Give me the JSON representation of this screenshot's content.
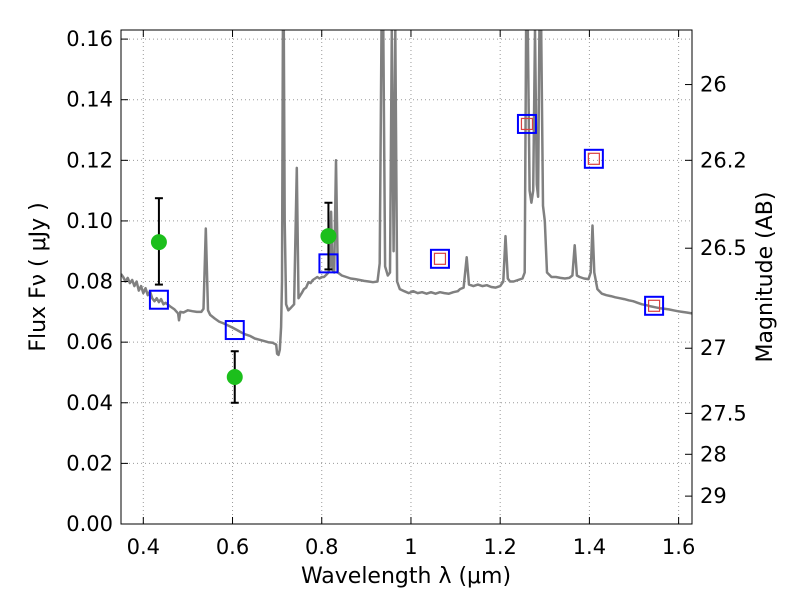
{
  "chart_data": {
    "type": "line",
    "xlabel": "Wavelength  λ (μm)",
    "ylabel": "Flux  Fν  ( μJy )",
    "y2label": "Magnitude (AB)",
    "xlim": [
      0.35,
      1.63
    ],
    "ylim": [
      0.0,
      0.163
    ],
    "grid": true,
    "x_ticks": [
      0.4,
      0.6,
      0.8,
      1.0,
      1.2,
      1.4,
      1.6
    ],
    "x_tick_labels": [
      "0.4",
      "0.6",
      "0.8",
      "1",
      "1.2",
      "1.4",
      "1.6"
    ],
    "y_ticks": [
      0.0,
      0.02,
      0.04,
      0.06,
      0.08,
      0.1,
      0.12,
      0.14,
      0.16
    ],
    "y_tick_labels": [
      "0.00",
      "0.02",
      "0.04",
      "0.06",
      "0.08",
      "0.10",
      "0.12",
      "0.14",
      "0.16"
    ],
    "y2_ticks": [
      {
        "label": "26",
        "flux": 0.145
      },
      {
        "label": "26.2",
        "flux": 0.12
      },
      {
        "label": "26.5",
        "flux": 0.091
      },
      {
        "label": "27",
        "flux": 0.058
      },
      {
        "label": "27.5",
        "flux": 0.0365
      },
      {
        "label": "28",
        "flux": 0.023
      },
      {
        "label": "29",
        "flux": 0.0092
      }
    ],
    "colors": {
      "spectrum": "#808080",
      "observed": "#1cbf1c",
      "errorbar": "#000000",
      "model_square": "#0000ff",
      "inner_square": "#d94040",
      "grid": "#9a9a9a"
    },
    "series": [
      {
        "kind": "spectrum",
        "points": [
          [
            0.35,
            0.0825
          ],
          [
            0.355,
            0.0815
          ],
          [
            0.36,
            0.08
          ],
          [
            0.365,
            0.0812
          ],
          [
            0.37,
            0.0795
          ],
          [
            0.375,
            0.0805
          ],
          [
            0.38,
            0.0785
          ],
          [
            0.385,
            0.08
          ],
          [
            0.39,
            0.077
          ],
          [
            0.395,
            0.0785
          ],
          [
            0.4,
            0.0762
          ],
          [
            0.405,
            0.0778
          ],
          [
            0.41,
            0.0755
          ],
          [
            0.415,
            0.0768
          ],
          [
            0.42,
            0.0745
          ],
          [
            0.425,
            0.0735
          ],
          [
            0.43,
            0.0745
          ],
          [
            0.435,
            0.0732
          ],
          [
            0.44,
            0.0742
          ],
          [
            0.445,
            0.0725
          ],
          [
            0.45,
            0.073
          ],
          [
            0.46,
            0.0718
          ],
          [
            0.47,
            0.0708
          ],
          [
            0.478,
            0.0695
          ],
          [
            0.48,
            0.0672
          ],
          [
            0.483,
            0.07
          ],
          [
            0.49,
            0.0698
          ],
          [
            0.5,
            0.0705
          ],
          [
            0.51,
            0.0702
          ],
          [
            0.52,
            0.07
          ],
          [
            0.53,
            0.07
          ],
          [
            0.535,
            0.071
          ],
          [
            0.54,
            0.0975
          ],
          [
            0.545,
            0.0705
          ],
          [
            0.55,
            0.069
          ],
          [
            0.56,
            0.0678
          ],
          [
            0.57,
            0.0668
          ],
          [
            0.58,
            0.0662
          ],
          [
            0.59,
            0.0655
          ],
          [
            0.6,
            0.0648
          ],
          [
            0.61,
            0.064
          ],
          [
            0.62,
            0.0632
          ],
          [
            0.63,
            0.0625
          ],
          [
            0.64,
            0.062
          ],
          [
            0.65,
            0.0612
          ],
          [
            0.66,
            0.0608
          ],
          [
            0.67,
            0.0604
          ],
          [
            0.68,
            0.06
          ],
          [
            0.69,
            0.0598
          ],
          [
            0.698,
            0.0592
          ],
          [
            0.7,
            0.0562
          ],
          [
            0.703,
            0.0558
          ],
          [
            0.706,
            0.0575
          ],
          [
            0.709,
            0.065
          ],
          [
            0.711,
            0.08
          ],
          [
            0.713,
            0.163
          ],
          [
            0.715,
            0.163
          ],
          [
            0.717,
            0.1
          ],
          [
            0.72,
            0.0725
          ],
          [
            0.725,
            0.0705
          ],
          [
            0.73,
            0.0712
          ],
          [
            0.738,
            0.0725
          ],
          [
            0.744,
            0.1175
          ],
          [
            0.748,
            0.0745
          ],
          [
            0.755,
            0.0762
          ],
          [
            0.76,
            0.0775
          ],
          [
            0.765,
            0.078
          ],
          [
            0.77,
            0.0798
          ],
          [
            0.775,
            0.0795
          ],
          [
            0.78,
            0.0805
          ],
          [
            0.785,
            0.081
          ],
          [
            0.79,
            0.0815
          ],
          [
            0.795,
            0.081
          ],
          [
            0.8,
            0.0815
          ],
          [
            0.805,
            0.0815
          ],
          [
            0.81,
            0.0822
          ],
          [
            0.815,
            0.083
          ],
          [
            0.818,
            0.085
          ],
          [
            0.821,
            0.103
          ],
          [
            0.824,
            0.084
          ],
          [
            0.828,
            0.083
          ],
          [
            0.832,
            0.12
          ],
          [
            0.836,
            0.083
          ],
          [
            0.845,
            0.082
          ],
          [
            0.855,
            0.0815
          ],
          [
            0.865,
            0.081
          ],
          [
            0.875,
            0.0808
          ],
          [
            0.885,
            0.0805
          ],
          [
            0.895,
            0.0802
          ],
          [
            0.905,
            0.08
          ],
          [
            0.915,
            0.0798
          ],
          [
            0.925,
            0.08
          ],
          [
            0.93,
            0.086
          ],
          [
            0.934,
            0.163
          ],
          [
            0.938,
            0.163
          ],
          [
            0.942,
            0.085
          ],
          [
            0.948,
            0.082
          ],
          [
            0.953,
            0.083
          ],
          [
            0.957,
            0.163
          ],
          [
            0.961,
            0.09
          ],
          [
            0.965,
            0.163
          ],
          [
            0.969,
            0.08
          ],
          [
            0.975,
            0.0775
          ],
          [
            0.985,
            0.0768
          ],
          [
            0.995,
            0.0762
          ],
          [
            1.005,
            0.0768
          ],
          [
            1.015,
            0.0762
          ],
          [
            1.025,
            0.0765
          ],
          [
            1.035,
            0.076
          ],
          [
            1.045,
            0.0765
          ],
          [
            1.055,
            0.076
          ],
          [
            1.065,
            0.0765
          ],
          [
            1.075,
            0.0762
          ],
          [
            1.085,
            0.076
          ],
          [
            1.095,
            0.0765
          ],
          [
            1.105,
            0.0768
          ],
          [
            1.11,
            0.0775
          ],
          [
            1.118,
            0.078
          ],
          [
            1.125,
            0.088
          ],
          [
            1.13,
            0.079
          ],
          [
            1.14,
            0.0785
          ],
          [
            1.15,
            0.079
          ],
          [
            1.16,
            0.0785
          ],
          [
            1.17,
            0.0788
          ],
          [
            1.18,
            0.0782
          ],
          [
            1.19,
            0.078
          ],
          [
            1.2,
            0.0785
          ],
          [
            1.207,
            0.08
          ],
          [
            1.212,
            0.095
          ],
          [
            1.217,
            0.081
          ],
          [
            1.222,
            0.08
          ],
          [
            1.23,
            0.08
          ],
          [
            1.24,
            0.0805
          ],
          [
            1.25,
            0.081
          ],
          [
            1.255,
            0.083
          ],
          [
            1.258,
            0.163
          ],
          [
            1.262,
            0.163
          ],
          [
            1.266,
            0.11
          ],
          [
            1.27,
            0.106
          ],
          [
            1.274,
            0.11
          ],
          [
            1.278,
            0.163
          ],
          [
            1.282,
            0.112
          ],
          [
            1.285,
            0.108
          ],
          [
            1.288,
            0.163
          ],
          [
            1.292,
            0.163
          ],
          [
            1.296,
            0.105
          ],
          [
            1.3,
            0.1
          ],
          [
            1.305,
            0.083
          ],
          [
            1.315,
            0.0815
          ],
          [
            1.325,
            0.0815
          ],
          [
            1.335,
            0.0812
          ],
          [
            1.345,
            0.081
          ],
          [
            1.355,
            0.0812
          ],
          [
            1.362,
            0.082
          ],
          [
            1.367,
            0.092
          ],
          [
            1.372,
            0.082
          ],
          [
            1.378,
            0.0815
          ],
          [
            1.388,
            0.081
          ],
          [
            1.398,
            0.0808
          ],
          [
            1.403,
            0.083
          ],
          [
            1.407,
            0.0985
          ],
          [
            1.411,
            0.083
          ],
          [
            1.418,
            0.0775
          ],
          [
            1.428,
            0.076
          ],
          [
            1.438,
            0.0755
          ],
          [
            1.448,
            0.0752
          ],
          [
            1.458,
            0.0748
          ],
          [
            1.468,
            0.0745
          ],
          [
            1.478,
            0.0742
          ],
          [
            1.488,
            0.0738
          ],
          [
            1.498,
            0.0735
          ],
          [
            1.508,
            0.073
          ],
          [
            1.518,
            0.0725
          ],
          [
            1.528,
            0.0722
          ],
          [
            1.538,
            0.0718
          ],
          [
            1.548,
            0.0715
          ],
          [
            1.558,
            0.0712
          ],
          [
            1.568,
            0.071
          ],
          [
            1.578,
            0.0708
          ],
          [
            1.588,
            0.0705
          ],
          [
            1.598,
            0.0702
          ],
          [
            1.608,
            0.07
          ],
          [
            1.618,
            0.0698
          ],
          [
            1.63,
            0.0695
          ]
        ]
      },
      {
        "kind": "observed",
        "points": [
          {
            "x": 0.435,
            "y": 0.093,
            "ylo": 0.079,
            "yhi": 0.1075
          },
          {
            "x": 0.605,
            "y": 0.0485,
            "ylo": 0.04,
            "yhi": 0.057
          },
          {
            "x": 0.815,
            "y": 0.095,
            "ylo": 0.084,
            "yhi": 0.106
          }
        ]
      },
      {
        "kind": "model",
        "points": [
          {
            "x": 0.435,
            "y": 0.074,
            "inner": false
          },
          {
            "x": 0.605,
            "y": 0.064,
            "inner": false
          },
          {
            "x": 0.815,
            "y": 0.086,
            "inner": false
          },
          {
            "x": 1.065,
            "y": 0.0875,
            "inner": true
          },
          {
            "x": 1.26,
            "y": 0.132,
            "inner": true
          },
          {
            "x": 1.41,
            "y": 0.1205,
            "inner": true
          },
          {
            "x": 1.545,
            "y": 0.072,
            "inner": true
          }
        ]
      }
    ]
  }
}
